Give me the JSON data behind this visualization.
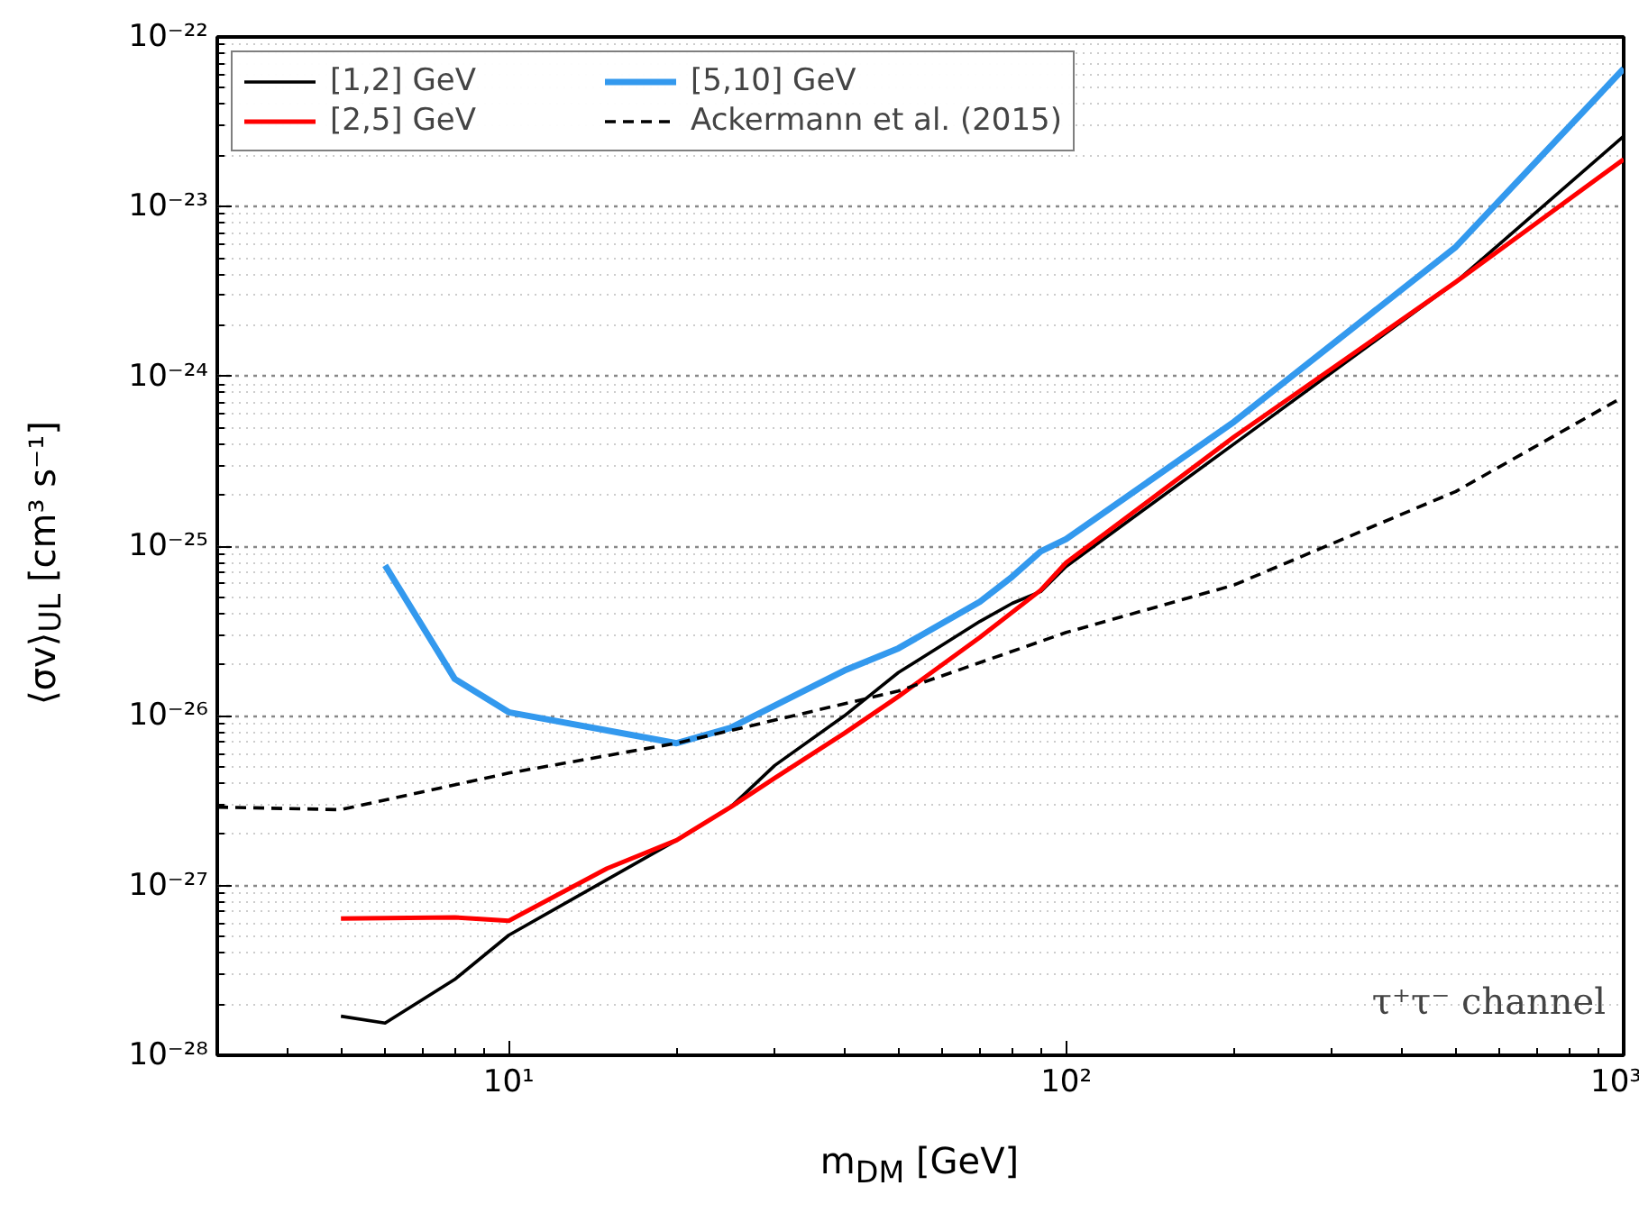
{
  "chart_data": {
    "type": "line",
    "xlabel": "m$_{DM}$ [GeV]",
    "ylabel": "⟨σv⟩$_{UL}$ [cm³ s⁻¹]",
    "log": "xy",
    "grid": true,
    "legend": "top left",
    "xlim": [
      3,
      1000
    ],
    "ylim": [
      1e-28,
      1e-22
    ],
    "xticks": [
      {
        "value": 10,
        "label": "10¹"
      },
      {
        "value": 100,
        "label": "10²"
      },
      {
        "value": 1000,
        "label": "10³"
      }
    ],
    "yticks": [
      {
        "value": 1e-28,
        "label": "10⁻²⁸"
      },
      {
        "value": 1e-27,
        "label": "10⁻²⁷"
      },
      {
        "value": 1e-26,
        "label": "10⁻²⁶"
      },
      {
        "value": 1e-25,
        "label": "10⁻²⁵"
      },
      {
        "value": 1e-24,
        "label": "10⁻²⁴"
      },
      {
        "value": 1e-23,
        "label": "10⁻²³"
      },
      {
        "value": 1e-22,
        "label": "10⁻²²"
      }
    ],
    "annotations": [
      "τ⁺τ⁻ channel"
    ],
    "series": [
      {
        "name": "[1,2] GeV",
        "color": "#000000",
        "line_style": "solid",
        "x": [
          5,
          6,
          8,
          10,
          20,
          25,
          30,
          40,
          50,
          70,
          80,
          90,
          100,
          200,
          500,
          1000
        ],
        "values": [
          1.7e-28,
          1.55e-28,
          2.8e-28,
          5.1e-28,
          1.85e-27,
          2.9e-27,
          5.1e-27,
          1e-26,
          1.8e-26,
          3.6e-26,
          4.6e-26,
          5.4e-26,
          7.6e-26,
          4e-25,
          3.6e-24,
          2.6e-23
        ]
      },
      {
        "name": "[2,5] GeV",
        "color": "#ff0000",
        "line_style": "solid",
        "x": [
          5,
          8,
          10,
          15,
          20,
          25,
          30,
          40,
          50,
          70,
          90,
          100,
          200,
          500,
          1000
        ],
        "values": [
          6.4e-28,
          6.5e-28,
          6.2e-28,
          1.26e-27,
          1.85e-27,
          2.9e-27,
          4.3e-27,
          7.9e-27,
          1.3e-26,
          2.9e-26,
          5.5e-26,
          8e-26,
          4.4e-25,
          3.6e-24,
          1.9e-23
        ]
      },
      {
        "name": "[5,10] GeV",
        "color": "#3399ee",
        "line_style": "solid",
        "x": [
          6,
          8,
          10,
          20,
          25,
          40,
          50,
          70,
          80,
          90,
          100,
          200,
          500,
          1000
        ],
        "values": [
          7.7e-26,
          1.65e-26,
          1.05e-26,
          6.9e-27,
          8.5e-27,
          1.85e-26,
          2.5e-26,
          4.7e-26,
          6.6e-26,
          9.3e-26,
          1.1e-25,
          5.4e-25,
          5.8e-24,
          6.5e-23
        ]
      },
      {
        "name": "Ackermann et al. (2015)",
        "color": "#000000",
        "line_style": "dashed",
        "x": [
          3,
          5,
          10,
          20,
          50,
          100,
          200,
          500,
          1000
        ],
        "values": [
          2.9e-27,
          2.8e-27,
          4.6e-27,
          6.9e-27,
          1.4e-26,
          3.1e-26,
          5.9e-26,
          2.1e-25,
          7.6e-25
        ]
      }
    ]
  }
}
